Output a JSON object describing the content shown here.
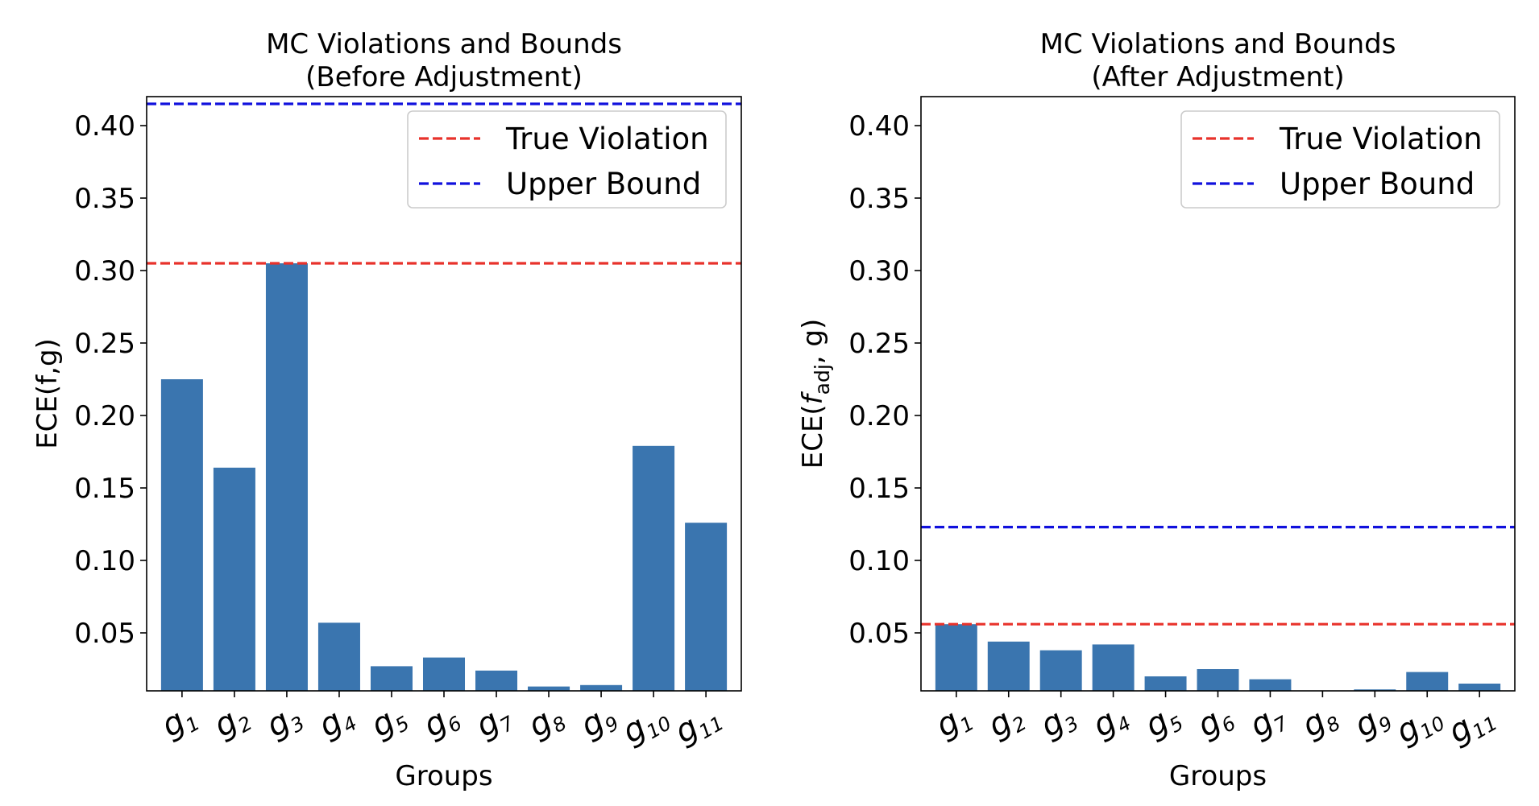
{
  "chart_data": [
    {
      "type": "bar",
      "title": "MC Violations and Bounds",
      "subtitle": "(Before Adjustment)",
      "xlabel": "Groups",
      "ylabel": "ECE(f,g)",
      "ylim": [
        0.01,
        0.42
      ],
      "yticks": [
        0.05,
        0.1,
        0.15,
        0.2,
        0.25,
        0.3,
        0.35,
        0.4
      ],
      "ytick_labels": [
        "0.05",
        "0.10",
        "0.15",
        "0.20",
        "0.25",
        "0.30",
        "0.35",
        "0.40"
      ],
      "categories": [
        "g1",
        "g2",
        "g3",
        "g4",
        "g5",
        "g6",
        "g7",
        "g8",
        "g9",
        "g10",
        "g11"
      ],
      "category_base": "g",
      "category_subscripts": [
        "1",
        "2",
        "3",
        "4",
        "5",
        "6",
        "7",
        "8",
        "9",
        "10",
        "11"
      ],
      "values": [
        0.225,
        0.164,
        0.305,
        0.057,
        0.027,
        0.033,
        0.024,
        0.013,
        0.014,
        0.179,
        0.126
      ],
      "bar_color": "#3a75af",
      "hlines": [
        {
          "name": "True Violation",
          "value": 0.305,
          "color": "#e8322b"
        },
        {
          "name": "Upper Bound",
          "value": 0.415,
          "color": "#1111dd"
        }
      ],
      "legend": [
        "True Violation",
        "Upper Bound"
      ],
      "legend_position": "top-right",
      "grid": false
    },
    {
      "type": "bar",
      "title": "MC Violations and Bounds",
      "subtitle": "(After Adjustment)",
      "xlabel": "Groups",
      "ylabel": "ECE(f_adj, g)",
      "ylabel_parts": {
        "prefix": "ECE(",
        "func": "f",
        "sub": "adj",
        "suffix": ", g)"
      },
      "ylim": [
        0.01,
        0.42
      ],
      "yticks": [
        0.05,
        0.1,
        0.15,
        0.2,
        0.25,
        0.3,
        0.35,
        0.4
      ],
      "ytick_labels": [
        "0.05",
        "0.10",
        "0.15",
        "0.20",
        "0.25",
        "0.30",
        "0.35",
        "0.40"
      ],
      "categories": [
        "g1",
        "g2",
        "g3",
        "g4",
        "g5",
        "g6",
        "g7",
        "g8",
        "g9",
        "g10",
        "g11"
      ],
      "category_base": "g",
      "category_subscripts": [
        "1",
        "2",
        "3",
        "4",
        "5",
        "6",
        "7",
        "8",
        "9",
        "10",
        "11"
      ],
      "values": [
        0.056,
        0.044,
        0.038,
        0.042,
        0.02,
        0.025,
        0.018,
        0.009,
        0.011,
        0.023,
        0.015
      ],
      "bar_color": "#3a75af",
      "hlines": [
        {
          "name": "True Violation",
          "value": 0.056,
          "color": "#e8322b"
        },
        {
          "name": "Upper Bound",
          "value": 0.123,
          "color": "#1111dd"
        }
      ],
      "legend": [
        "True Violation",
        "Upper Bound"
      ],
      "legend_position": "top-right",
      "grid": false
    }
  ]
}
